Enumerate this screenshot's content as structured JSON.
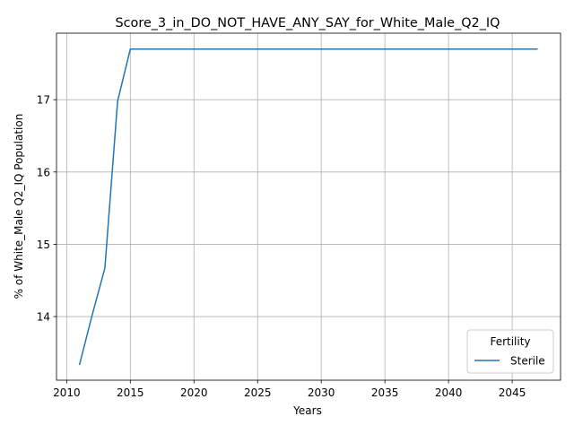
{
  "chart_data": {
    "type": "line",
    "title": "Score_3_in_DO_NOT_HAVE_ANY_SAY_for_White_Male_Q2_IQ",
    "xlabel": "Years",
    "ylabel": "% of White_Male Q2_IQ Population",
    "xlim": [
      2009.2,
      2048.8
    ],
    "ylim": [
      13.12,
      17.92
    ],
    "xticks": [
      2010,
      2015,
      2020,
      2025,
      2030,
      2035,
      2040,
      2045
    ],
    "xtick_labels": [
      "2010",
      "2015",
      "2020",
      "2025",
      "2030",
      "2035",
      "2040",
      "2045"
    ],
    "yticks": [
      14,
      15,
      16,
      17
    ],
    "ytick_labels": [
      "14",
      "15",
      "16",
      "17"
    ],
    "grid": true,
    "legend": {
      "title": "Fertility",
      "placement": "lower-right"
    },
    "series": [
      {
        "name": "Sterile",
        "color": "#1f77b4",
        "x": [
          2011,
          2012,
          2013,
          2014,
          2015,
          2016,
          2017,
          2018,
          2019,
          2020,
          2021,
          2022,
          2023,
          2024,
          2025,
          2026,
          2027,
          2028,
          2029,
          2030,
          2031,
          2032,
          2033,
          2034,
          2035,
          2036,
          2037,
          2038,
          2039,
          2040,
          2041,
          2042,
          2043,
          2044,
          2045,
          2046,
          2047
        ],
        "y": [
          13.33,
          14.02,
          14.67,
          16.98,
          17.7,
          17.7,
          17.7,
          17.7,
          17.7,
          17.7,
          17.7,
          17.7,
          17.7,
          17.7,
          17.7,
          17.7,
          17.7,
          17.7,
          17.7,
          17.7,
          17.7,
          17.7,
          17.7,
          17.7,
          17.7,
          17.7,
          17.7,
          17.7,
          17.7,
          17.7,
          17.7,
          17.7,
          17.7,
          17.7,
          17.7,
          17.7,
          17.7
        ]
      }
    ]
  }
}
